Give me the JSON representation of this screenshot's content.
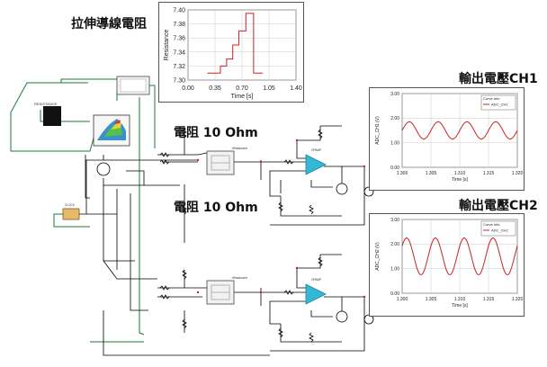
{
  "labels": {
    "stretch_title": "拉伸導線電阻",
    "resistor_top": "電阻 10 Ohm",
    "resistor_bottom": "電阻 10 Ohm",
    "output_ch1": "輸出電壓CH1",
    "output_ch2": "輸出電壓CH2"
  },
  "colors": {
    "wire": "#000000",
    "green_wire": "#1a7a3a",
    "opamp": "#35b8d6",
    "red_trace": "#cc2222",
    "grid": "#cccccc"
  },
  "chart_data": [
    {
      "type": "line",
      "xlabel": "Time [s]",
      "ylabel": "Resistance",
      "xlim": [
        0.0,
        1.4
      ],
      "ylim": [
        7.3,
        7.4
      ],
      "xticks": [
        "0.00",
        "0.35",
        "0.70",
        "1.05",
        "1.40"
      ],
      "yticks": [
        "7.30",
        "7.32",
        "7.34",
        "7.36",
        "7.38",
        "7.40"
      ],
      "grid": true,
      "x": [
        0.25,
        0.42,
        0.42,
        0.5,
        0.5,
        0.58,
        0.58,
        0.66,
        0.66,
        0.75,
        0.75,
        0.85,
        0.85,
        0.97
      ],
      "values": [
        7.31,
        7.31,
        7.32,
        7.32,
        7.33,
        7.33,
        7.35,
        7.35,
        7.37,
        7.37,
        7.395,
        7.395,
        7.31,
        7.31
      ]
    },
    {
      "type": "line",
      "xlabel": "Time [s]",
      "ylabel": "ADC_CH1 (V)",
      "legend_title": "Curve Info",
      "legend_entry": "ADC_CH1",
      "legend_placement": "top-right",
      "xlim": [
        1.3,
        1.32
      ],
      "ylim": [
        0.0,
        3.0
      ],
      "xticks": [
        "1.300",
        "1.305",
        "1.310",
        "1.315",
        "1.320"
      ],
      "yticks": [
        "0.00",
        "1.00",
        "2.00",
        "3.00"
      ],
      "grid": true,
      "waveform": "sine",
      "offset": 1.5,
      "amplitude": 0.35,
      "frequency_hz": 200,
      "phase": 0.0
    },
    {
      "type": "line",
      "xlabel": "Time [s]",
      "ylabel": "ADC_CH2 (V)",
      "legend_title": "Curve Info",
      "legend_entry": "ADC_CH2",
      "legend_placement": "top-right",
      "xlim": [
        1.3,
        1.32
      ],
      "ylim": [
        0.0,
        3.0
      ],
      "xticks": [
        "1.300",
        "1.305",
        "1.310",
        "1.315",
        "1.320"
      ],
      "yticks": [
        "0.00",
        "1.00",
        "2.00",
        "3.00"
      ],
      "grid": true,
      "waveform": "sine",
      "offset": 1.5,
      "amplitude": 0.75,
      "frequency_hz": 200,
      "phase": 0.6
    }
  ]
}
